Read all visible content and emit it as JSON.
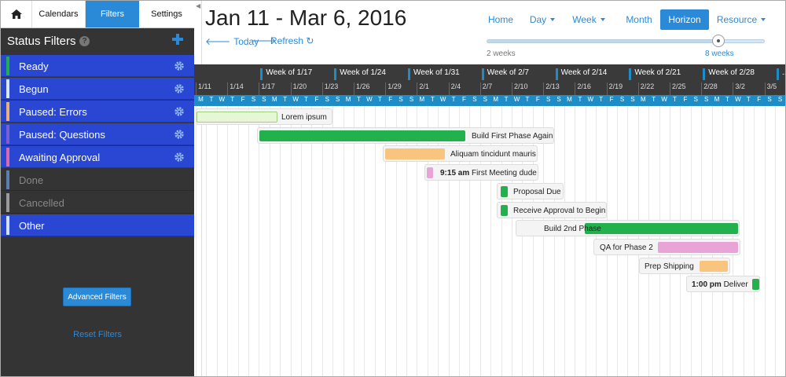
{
  "nav": {
    "calendars": "Calendars",
    "filters": "Filters",
    "settings": "Settings"
  },
  "sidebar": {
    "title": "Status Filters",
    "help_glyph": "?",
    "filters": [
      {
        "label": "Ready",
        "color": "#1fae52",
        "active": true
      },
      {
        "label": "Begun",
        "color": "#d8e6f0",
        "active": true
      },
      {
        "label": "Paused: Errors",
        "color": "#e8b07a",
        "active": true
      },
      {
        "label": "Paused: Questions",
        "color": "#7a5fd0",
        "active": true
      },
      {
        "label": "Awaiting Approval",
        "color": "#d46ab0",
        "active": true
      },
      {
        "label": "Done",
        "color": "#5a7fb0",
        "active": false
      },
      {
        "label": "Cancelled",
        "color": "#9a9a9a",
        "active": false
      },
      {
        "label": "Other",
        "color": "#cfe0f2",
        "active": true
      }
    ],
    "advanced_filters": "Advanced Filters",
    "reset_filters": "Reset Filters"
  },
  "header": {
    "date_range": "Jan 11 - Mar 6, 2016",
    "today": "Today",
    "refresh": "Refresh",
    "views": [
      "Home",
      "Day",
      "Week",
      "Month",
      "Horizon",
      "Resource"
    ],
    "active_view": "Horizon",
    "slider_min": "2 weeks",
    "slider_max": "8 weeks"
  },
  "gantt": {
    "weeks": [
      "Week of 1/17",
      "Week of 1/24",
      "Week of 1/31",
      "Week of 2/7",
      "Week of 2/14",
      "Week of 2/21",
      "Week of 2/28",
      "..."
    ],
    "dates": [
      "1/11",
      "1/14",
      "1/17",
      "1/20",
      "1/23",
      "1/26",
      "1/29",
      "2/1",
      "2/4",
      "2/7",
      "2/10",
      "2/13",
      "2/16",
      "2/19",
      "2/22",
      "2/25",
      "2/28",
      "3/2",
      "3/5"
    ],
    "days": [
      "M",
      "T",
      "W",
      "T",
      "F",
      "S",
      "S"
    ],
    "tasks": [
      {
        "label": "Lorem ipsum",
        "time": "",
        "color": "#e6f7d8"
      },
      {
        "label": "Build First Phase Again",
        "time": "",
        "color": "#22b14c"
      },
      {
        "label": "Aliquam tincidunt mauris",
        "time": "",
        "color": "#f8c47e"
      },
      {
        "label": "First Meeting dude",
        "time": "9:15 am",
        "color": "#e8a4d6"
      },
      {
        "label": "Proposal Due",
        "time": "",
        "color": "#22b14c"
      },
      {
        "label": "Receive Approval to Begin",
        "time": "",
        "color": "#22b14c"
      },
      {
        "label": "Build 2nd Phase",
        "time": "",
        "color": "#22b14c"
      },
      {
        "label": "QA for Phase 2",
        "time": "",
        "color": "#e8a4d6"
      },
      {
        "label": "Prep Shipping",
        "time": "",
        "color": "#f8c47e"
      },
      {
        "label": "Deliver",
        "time": "1:00 pm",
        "color": "#22b14c"
      }
    ]
  }
}
